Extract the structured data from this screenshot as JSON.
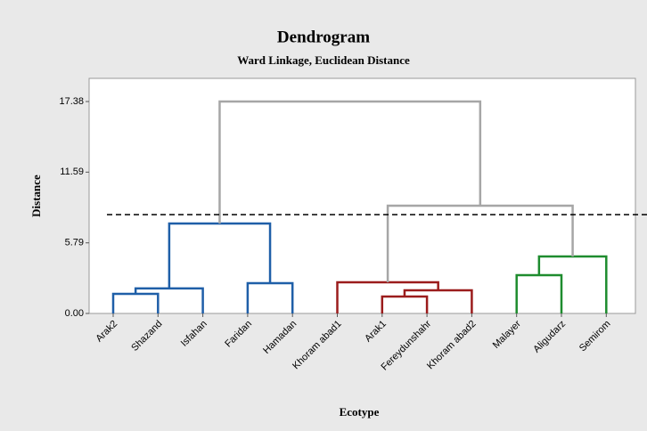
{
  "chart_data": {
    "type": "dendrogram",
    "title": "Dendrogram",
    "subtitle": "Ward Linkage, Euclidean Distance",
    "x_label": "Ecotype",
    "y_label": "Distance",
    "categories": [
      "Arak2",
      "Shazand",
      "Isfahan",
      "Faridan",
      "Hamadan",
      "Khoram abad1",
      "Arak1",
      "Fereydunshahr",
      "Khoram abad2",
      "Malayer",
      "Aligudarz",
      "Semirom"
    ],
    "ylim": [
      0,
      19.28
    ],
    "yticks": [
      {
        "value": 0,
        "label": "0.00"
      },
      5.79,
      11.59,
      17.38
    ],
    "merges": [
      {
        "children": [
          0,
          1
        ],
        "height": 1.61,
        "color": "#1f5fa8"
      },
      {
        "children": [
          12,
          2
        ],
        "height": 2.05,
        "color": "#1f5fa8"
      },
      {
        "children": [
          3,
          4
        ],
        "height": 2.48,
        "color": "#1f5fa8"
      },
      {
        "children": [
          13,
          14
        ],
        "height": 7.38,
        "color": "#1f5fa8"
      },
      {
        "children": [
          6,
          7
        ],
        "height": 1.39,
        "color": "#9b1c1c"
      },
      {
        "children": [
          16,
          8
        ],
        "height": 1.9,
        "color": "#9b1c1c"
      },
      {
        "children": [
          5,
          17
        ],
        "height": 2.56,
        "color": "#9b1c1c"
      },
      {
        "children": [
          9,
          10
        ],
        "height": 3.14,
        "color": "#1e8c2e"
      },
      {
        "children": [
          19,
          11
        ],
        "height": 4.67,
        "color": "#1e8c2e"
      },
      {
        "children": [
          18,
          20
        ],
        "height": 8.84,
        "color": "#a6a6a6"
      },
      {
        "children": [
          15,
          21
        ],
        "height": 17.38,
        "color": "#a6a6a6"
      }
    ],
    "cutoff": 8.11
  }
}
